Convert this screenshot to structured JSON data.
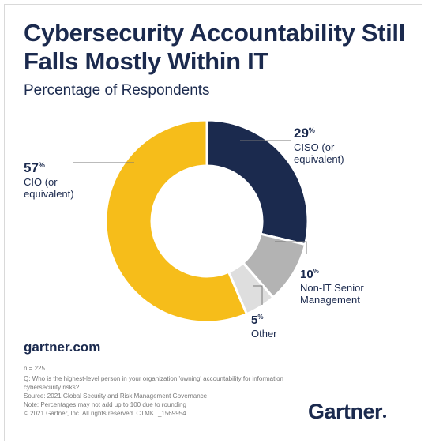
{
  "header": {
    "title": "Cybersecurity Accountability Still Falls Mostly Within IT",
    "subtitle": "Percentage of Respondents"
  },
  "chart_data": {
    "type": "pie",
    "title": "Cybersecurity Accountability Still Falls Mostly Within IT",
    "subtitle": "Percentage of Respondents",
    "donut": true,
    "slices": [
      {
        "label_lines": [
          "CISO (or",
          "equivalent)"
        ],
        "value": 29,
        "value_label": "29",
        "color": "#1b2a4e"
      },
      {
        "label_lines": [
          "Non-IT Senior",
          "Management"
        ],
        "value": 10,
        "value_label": "10",
        "color": "#b3b3b3"
      },
      {
        "label_lines": [
          "Other"
        ],
        "value": 5,
        "value_label": "5",
        "color": "#dedede"
      },
      {
        "label_lines": [
          "CIO (or",
          "equivalent)"
        ],
        "value": 57,
        "value_label": "57",
        "color": "#f6bd1a"
      }
    ],
    "unit_symbol": "%"
  },
  "footer": {
    "website": "gartner.com",
    "sample": "n = 225",
    "question": "Q: Who is the highest-level person in your organization 'owning' accountability for information cybersecurity risks?",
    "source": "Source: 2021 Global Security and Risk Management Governance",
    "note": "Note: Percentages may not add up to 100 due to rounding",
    "copyright": "© 2021 Gartner, Inc. All rights reserved. CTMKT_1569954",
    "brand": "Gartner"
  }
}
